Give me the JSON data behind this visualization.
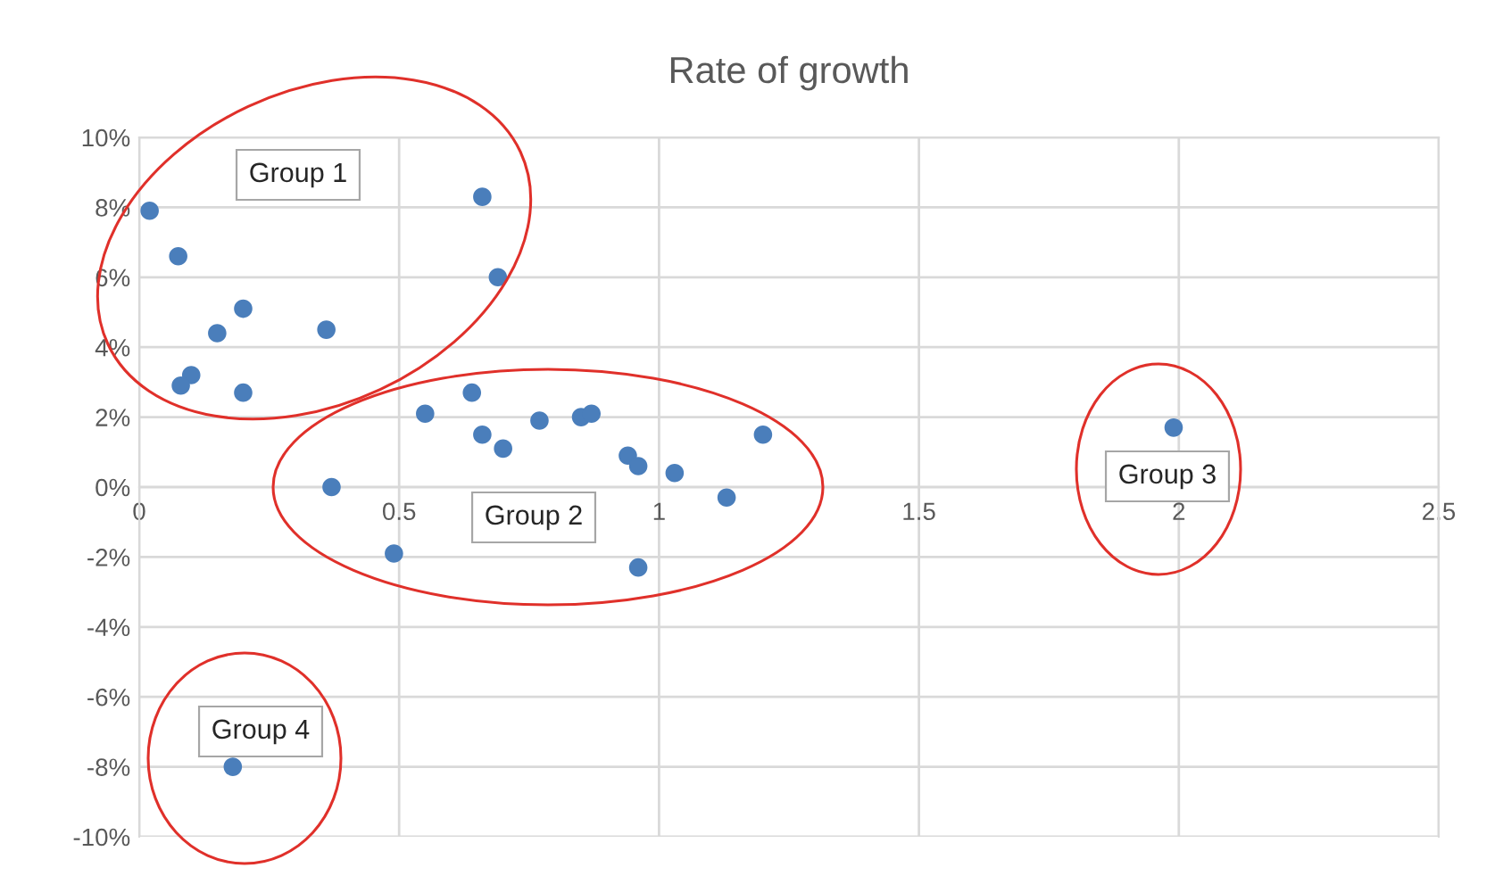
{
  "chart_data": {
    "type": "scatter",
    "title": "Rate of growth",
    "x": [
      0.02,
      0.075,
      0.1,
      0.08,
      0.15,
      0.2,
      0.2,
      0.36,
      0.66,
      0.69,
      0.37,
      0.55,
      0.64,
      0.66,
      0.7,
      0.77,
      0.85,
      0.87,
      0.94,
      0.96,
      1.03,
      1.13,
      1.2,
      0.49,
      0.96,
      1.99,
      0.18
    ],
    "series": [
      {
        "color": "#4a7ebb",
        "values": [
          7.9,
          6.6,
          3.2,
          2.9,
          4.4,
          5.1,
          2.7,
          4.5,
          8.3,
          6.0,
          0.0,
          2.1,
          2.7,
          1.5,
          1.1,
          1.9,
          2.0,
          2.1,
          0.9,
          0.6,
          0.4,
          -0.3,
          1.5,
          -1.9,
          -2.3,
          1.7,
          -8.0
        ]
      }
    ],
    "xlim": [
      0,
      2.5
    ],
    "xticks": [
      0,
      0.5,
      1,
      1.5,
      2,
      2.5
    ],
    "ylim": [
      -10,
      10
    ],
    "yticks": [
      {
        "value": -10,
        "label": "-10%"
      },
      {
        "value": -8,
        "label": "-8%"
      },
      {
        "value": -6,
        "label": "-6%"
      },
      {
        "value": -4,
        "label": "-4%"
      },
      {
        "value": -2,
        "label": "-2%"
      },
      {
        "value": 0,
        "label": "0%"
      },
      {
        "value": 2,
        "label": "2%"
      },
      {
        "value": 4,
        "label": "4%"
      },
      {
        "value": 6,
        "label": "6%"
      },
      {
        "value": 8,
        "label": "8%"
      },
      {
        "value": 10,
        "label": "10%"
      }
    ],
    "grid": true,
    "marker": "circle",
    "legend": false,
    "annotations": [
      "Group 1",
      "Group 2",
      "Group 3",
      "Group 4"
    ]
  }
}
